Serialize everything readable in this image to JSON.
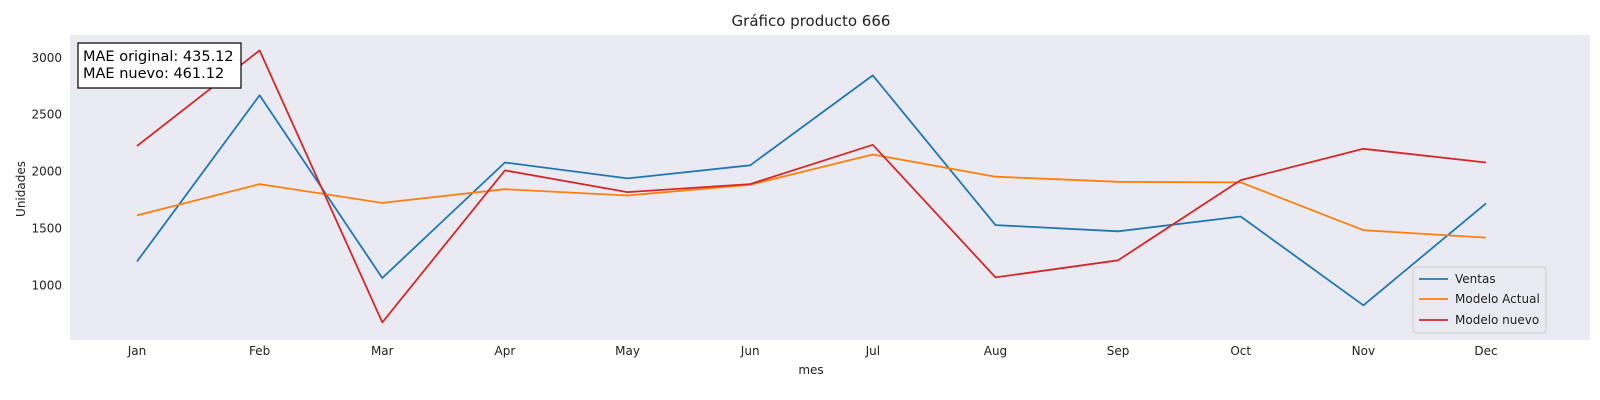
{
  "chart_data": {
    "type": "line",
    "title": "Gráfico producto 666",
    "xlabel": "mes",
    "ylabel": "Unidades",
    "categories": [
      "Jan",
      "Feb",
      "Mar",
      "Apr",
      "May",
      "Jun",
      "Jul",
      "Aug",
      "Sep",
      "Oct",
      "Nov",
      "Dec"
    ],
    "ylim": [
      520,
      3200
    ],
    "yticks": [
      1000,
      1500,
      2000,
      2500,
      3000
    ],
    "grid": false,
    "legend_position": "lower-right",
    "series": [
      {
        "name": "Ventas",
        "color": "#1f77b4",
        "values": [
          1210,
          2670,
          1065,
          2080,
          1940,
          2055,
          2845,
          1530,
          1475,
          1605,
          825,
          1720
        ]
      },
      {
        "name": "Modelo Actual",
        "color": "#ff7f0e",
        "values": [
          1615,
          1890,
          1725,
          1845,
          1790,
          1885,
          2150,
          1955,
          1910,
          1905,
          1485,
          1420
        ]
      },
      {
        "name": "Modelo nuevo",
        "color": "#d62728",
        "values": [
          2225,
          3065,
          675,
          2010,
          1820,
          1890,
          2235,
          1070,
          1220,
          1925,
          2200,
          2080
        ]
      }
    ],
    "annotation": {
      "line1": "MAE original: 435.12",
      "line2": "MAE nuevo: 461.12"
    }
  },
  "colors": {
    "plot_background": "#eaeaf2",
    "page_background": "#ffffff"
  }
}
